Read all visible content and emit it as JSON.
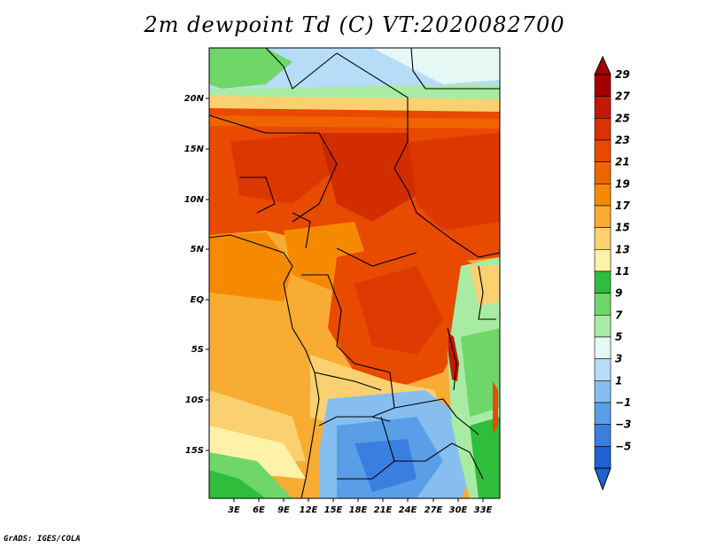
{
  "title": "2m dewpoint Td (C) VT:2020082700",
  "credit": "GrADS: IGES/COLA",
  "map": {
    "variable": "2m dewpoint",
    "units": "C",
    "valid_time": "2020082700",
    "lat_labels": [
      "20N",
      "15N",
      "10N",
      "5N",
      "EQ",
      "5S",
      "10S",
      "15S"
    ],
    "lon_labels": [
      "3E",
      "6E",
      "9E",
      "12E",
      "15E",
      "18E",
      "21E",
      "24E",
      "27E",
      "30E",
      "33E"
    ]
  },
  "colorbar": {
    "labels": [
      "29",
      "27",
      "25",
      "23",
      "21",
      "19",
      "17",
      "15",
      "13",
      "11",
      "9",
      "7",
      "5",
      "3",
      "1",
      "−1",
      "−3",
      "−5"
    ],
    "colors": [
      "#a50000",
      "#c11a00",
      "#da3200",
      "#e84a00",
      "#f06400",
      "#f58a00",
      "#f8ac33",
      "#fad070",
      "#fdf2a8",
      "#2fbe3c",
      "#6fd66a",
      "#a8eca4",
      "#e6f8f4",
      "#b6dcf8",
      "#86bef0",
      "#5a9ee8",
      "#3a7fe0",
      "#1f60d2"
    ]
  }
}
